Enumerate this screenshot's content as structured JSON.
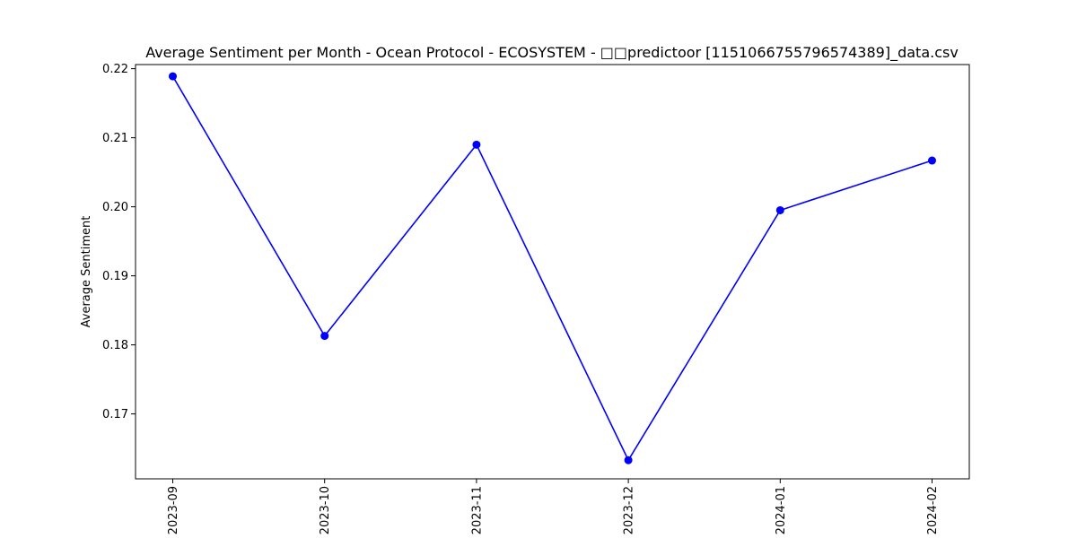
{
  "chart_data": {
    "type": "line",
    "title": "Average Sentiment per Month - Ocean Protocol - ECOSYSTEM - □□predictoor [1151066755796574389]_data.csv",
    "xlabel": "",
    "ylabel": "Average Sentiment",
    "categories": [
      "2023-09",
      "2023-10",
      "2023-11",
      "2023-12",
      "2024-01",
      "2024-02"
    ],
    "series": [
      {
        "values": [
          0.2189,
          0.1813,
          0.209,
          0.1633,
          0.1995,
          0.2067
        ],
        "color": "#0000ff",
        "marker": "circle"
      }
    ],
    "yticks": [
      "0.17",
      "0.18",
      "0.19",
      "0.20",
      "0.21",
      "0.22"
    ],
    "ylim": [
      0.1606,
      0.2206
    ],
    "grid": false,
    "legend": "none"
  }
}
